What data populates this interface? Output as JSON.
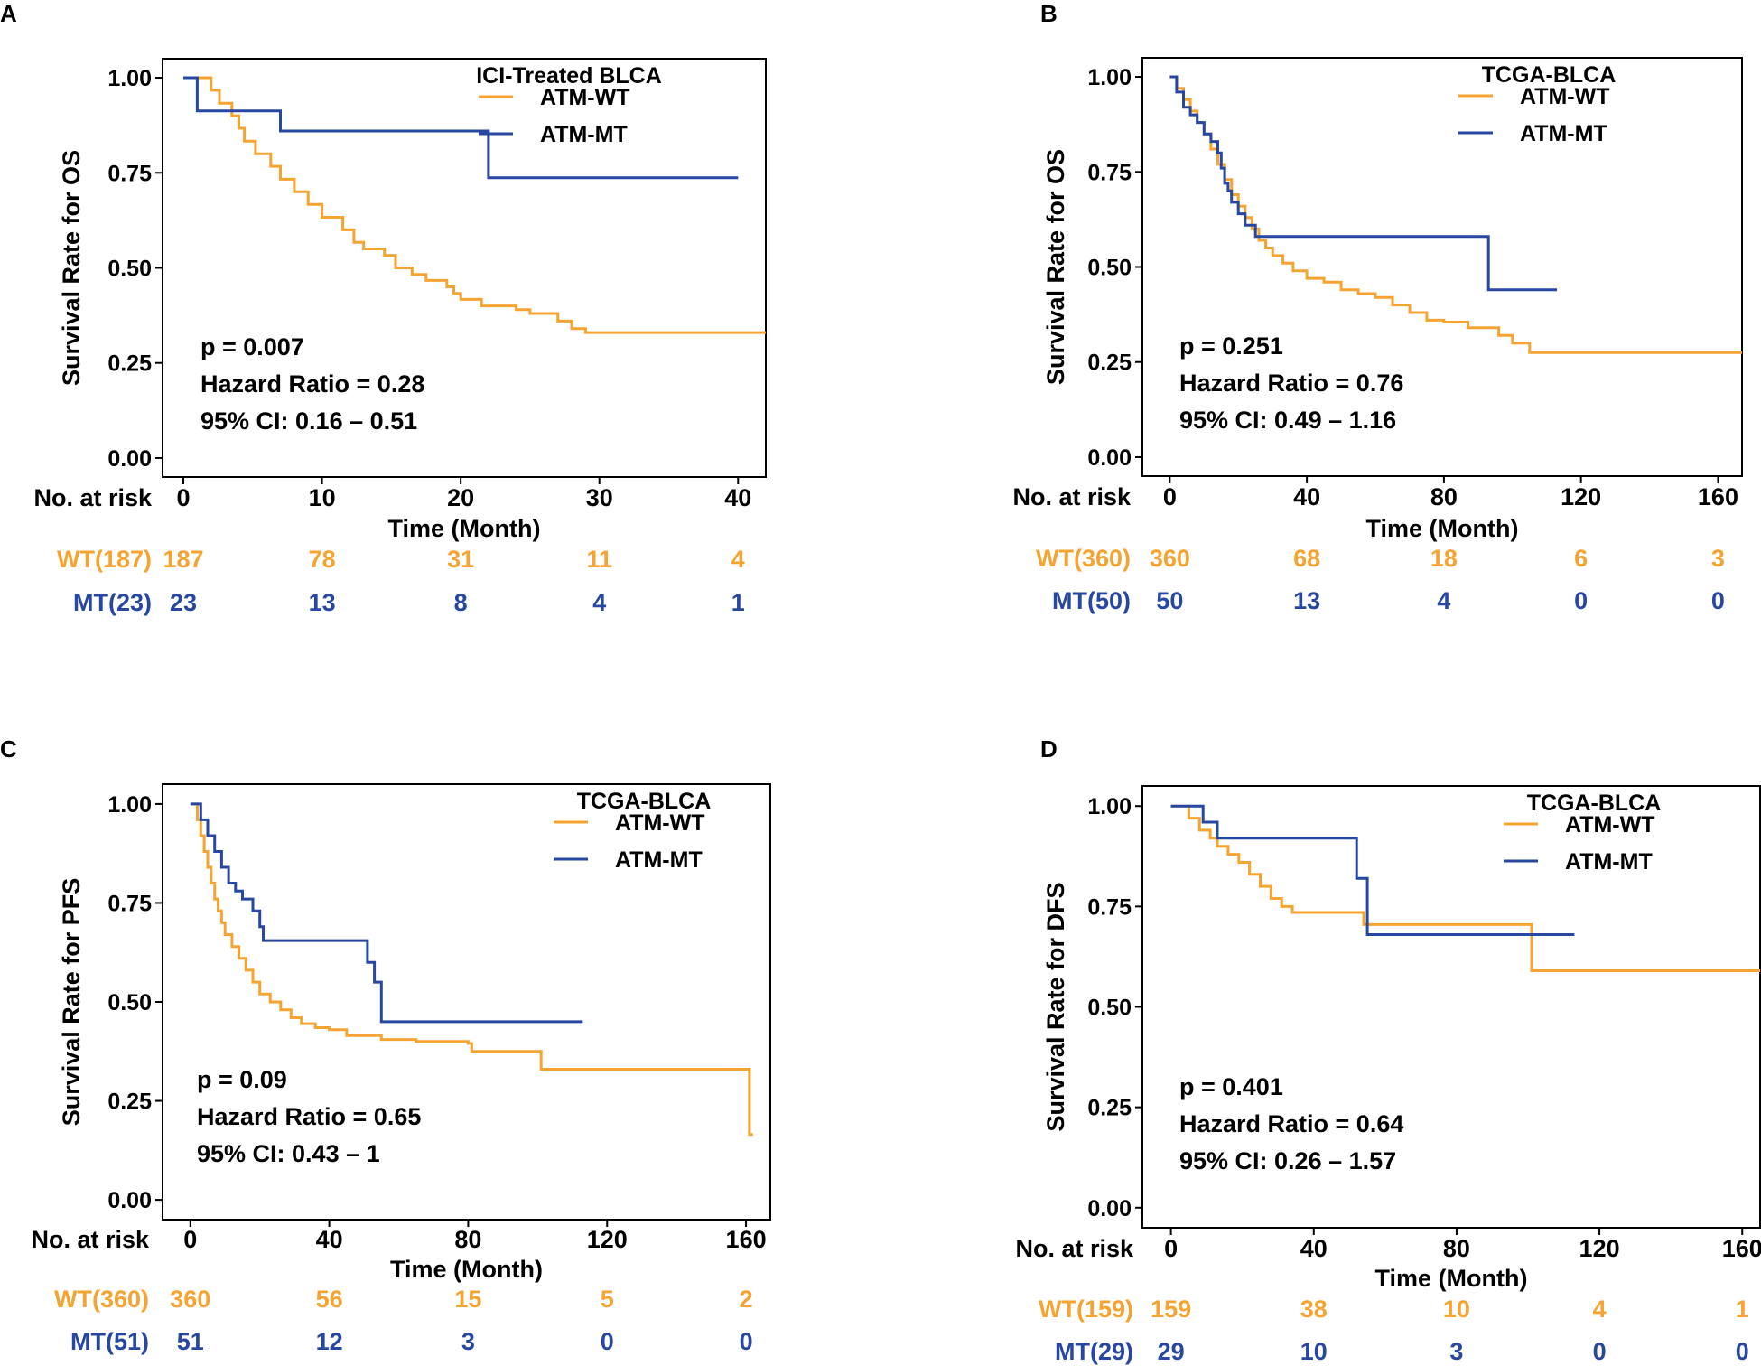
{
  "colors": {
    "wt": "#F5A431",
    "mt": "#2747A0",
    "axis": "#000000"
  },
  "chart_data": [
    {
      "type": "line",
      "panel_label": "A",
      "legend_title": "ICI-Treated BLCA",
      "series": [
        {
          "name": "ATM-WT",
          "key": "wt",
          "steps": [
            [
              0,
              1.0
            ],
            [
              2,
              0.967
            ],
            [
              2.6,
              0.933
            ],
            [
              3.5,
              0.9
            ],
            [
              4,
              0.867
            ],
            [
              4.4,
              0.833
            ],
            [
              5.2,
              0.8
            ],
            [
              6.3,
              0.767
            ],
            [
              7,
              0.733
            ],
            [
              8,
              0.7
            ],
            [
              9,
              0.667
            ],
            [
              10,
              0.633
            ],
            [
              11.5,
              0.6
            ],
            [
              12.3,
              0.567
            ],
            [
              13,
              0.55
            ],
            [
              14.5,
              0.533
            ],
            [
              15.3,
              0.5
            ],
            [
              16.5,
              0.483
            ],
            [
              17.5,
              0.467
            ],
            [
              19,
              0.45
            ],
            [
              19.5,
              0.433
            ],
            [
              20,
              0.417
            ],
            [
              21.5,
              0.4
            ],
            [
              24,
              0.39
            ],
            [
              25,
              0.38
            ],
            [
              27,
              0.36
            ],
            [
              28,
              0.34
            ],
            [
              29,
              0.33
            ],
            [
              40,
              0.33
            ]
          ],
          "end_x": 42.0
        },
        {
          "name": "ATM-MT",
          "key": "mt",
          "steps": [
            [
              0,
              1.0
            ],
            [
              1,
              0.913
            ],
            [
              7,
              0.86
            ],
            [
              22,
              0.737
            ]
          ],
          "end_x": 40
        }
      ],
      "annotations": [
        "p = 0.007",
        "Hazard Ratio = 0.28",
        "95% CI: 0.16 – 0.51"
      ],
      "ylabel": "Survival Rate for OS",
      "xlabel": "Time (Month)",
      "risk_label": "No. at risk",
      "xlim": [
        -1.5,
        42.0
      ],
      "ylim": [
        -0.05,
        1.05
      ],
      "xticks": [
        "0",
        "10",
        "20",
        "30",
        "40"
      ],
      "xtick_values": [
        0,
        10,
        20,
        30,
        40
      ],
      "yticks": [
        "0.00",
        "0.25",
        "0.50",
        "0.75",
        "1.00"
      ],
      "risk_table": [
        {
          "label": "WT(187)",
          "key": "wt",
          "values": [
            "187",
            "78",
            "31",
            "11",
            "4"
          ]
        },
        {
          "label": "MT(23)",
          "key": "mt",
          "values": [
            "23",
            "13",
            "8",
            "4",
            "1"
          ]
        }
      ]
    },
    {
      "type": "line",
      "panel_label": "B",
      "legend_title": "TCGA-BLCA",
      "series": [
        {
          "name": "ATM-WT",
          "key": "wt",
          "steps": [
            [
              0,
              1.0
            ],
            [
              2,
              0.97
            ],
            [
              4,
              0.94
            ],
            [
              6,
              0.91
            ],
            [
              8,
              0.88
            ],
            [
              10,
              0.85
            ],
            [
              12,
              0.81
            ],
            [
              14,
              0.77
            ],
            [
              16,
              0.73
            ],
            [
              18,
              0.69
            ],
            [
              20,
              0.66
            ],
            [
              22,
              0.63
            ],
            [
              24,
              0.6
            ],
            [
              26,
              0.57
            ],
            [
              28,
              0.55
            ],
            [
              30,
              0.53
            ],
            [
              33,
              0.51
            ],
            [
              36,
              0.49
            ],
            [
              40,
              0.47
            ],
            [
              45,
              0.46
            ],
            [
              50,
              0.44
            ],
            [
              55,
              0.43
            ],
            [
              60,
              0.42
            ],
            [
              65,
              0.4
            ],
            [
              70,
              0.38
            ],
            [
              75,
              0.36
            ],
            [
              80,
              0.355
            ],
            [
              86,
              0.355
            ],
            [
              87,
              0.34
            ],
            [
              95,
              0.34
            ],
            [
              96,
              0.32
            ],
            [
              100,
              0.3
            ],
            [
              105,
              0.275
            ],
            [
              165,
              0.275
            ]
          ],
          "end_x": 167
        },
        {
          "name": "ATM-MT",
          "key": "mt",
          "steps": [
            [
              0,
              1.0
            ],
            [
              2,
              0.96
            ],
            [
              4,
              0.92
            ],
            [
              6,
              0.9
            ],
            [
              8,
              0.88
            ],
            [
              10,
              0.85
            ],
            [
              12,
              0.83
            ],
            [
              14,
              0.8
            ],
            [
              15,
              0.76
            ],
            [
              16,
              0.72
            ],
            [
              17,
              0.7
            ],
            [
              18,
              0.67
            ],
            [
              20,
              0.64
            ],
            [
              22,
              0.61
            ],
            [
              25,
              0.58
            ],
            [
              93,
              0.44
            ]
          ],
          "end_x": 113
        }
      ],
      "annotations": [
        "p = 0.251",
        "Hazard Ratio = 0.76",
        "95% CI: 0.49 – 1.16"
      ],
      "ylabel": "Survival Rate for OS",
      "xlabel": "Time (Month)",
      "risk_label": "No. at risk",
      "xlim": [
        -8,
        167
      ],
      "ylim": [
        -0.05,
        1.05
      ],
      "xticks": [
        "0",
        "40",
        "80",
        "120",
        "160"
      ],
      "xtick_values": [
        0,
        40,
        80,
        120,
        160
      ],
      "yticks": [
        "0.00",
        "0.25",
        "0.50",
        "0.75",
        "1.00"
      ],
      "risk_table": [
        {
          "label": "WT(360)",
          "key": "wt",
          "values": [
            "360",
            "68",
            "18",
            "6",
            "3"
          ]
        },
        {
          "label": "MT(50)",
          "key": "mt",
          "values": [
            "50",
            "13",
            "4",
            "0",
            "0"
          ]
        }
      ]
    },
    {
      "type": "line",
      "panel_label": "C",
      "legend_title": "TCGA-BLCA",
      "series": [
        {
          "name": "ATM-WT",
          "key": "wt",
          "steps": [
            [
              0,
              1.0
            ],
            [
              2,
              0.96
            ],
            [
              3,
              0.92
            ],
            [
              4,
              0.88
            ],
            [
              5,
              0.84
            ],
            [
              6,
              0.8
            ],
            [
              7,
              0.76
            ],
            [
              8,
              0.73
            ],
            [
              9,
              0.7
            ],
            [
              10,
              0.67
            ],
            [
              12,
              0.64
            ],
            [
              14,
              0.61
            ],
            [
              16,
              0.58
            ],
            [
              18,
              0.55
            ],
            [
              20,
              0.52
            ],
            [
              23,
              0.5
            ],
            [
              26,
              0.48
            ],
            [
              29,
              0.46
            ],
            [
              32,
              0.445
            ],
            [
              36,
              0.435
            ],
            [
              40,
              0.43
            ],
            [
              45,
              0.415
            ],
            [
              55,
              0.405
            ],
            [
              65,
              0.4
            ],
            [
              80,
              0.395
            ],
            [
              81,
              0.375
            ],
            [
              100,
              0.375
            ],
            [
              101,
              0.33
            ],
            [
              160,
              0.33
            ],
            [
              161,
              0.165
            ]
          ],
          "end_x": 162
        },
        {
          "name": "ATM-MT",
          "key": "mt",
          "steps": [
            [
              0,
              1.0
            ],
            [
              3,
              0.96
            ],
            [
              5,
              0.92
            ],
            [
              7,
              0.88
            ],
            [
              9,
              0.84
            ],
            [
              11,
              0.8
            ],
            [
              13,
              0.78
            ],
            [
              15,
              0.76
            ],
            [
              18,
              0.73
            ],
            [
              20,
              0.69
            ],
            [
              21,
              0.655
            ],
            [
              51,
              0.6
            ],
            [
              53,
              0.55
            ],
            [
              55,
              0.45
            ]
          ],
          "end_x": 113
        }
      ],
      "annotations": [
        "p = 0.09",
        "Hazard Ratio = 0.65",
        "95% CI: 0.43 – 1"
      ],
      "ylabel": "Survival Rate for PFS",
      "xlabel": "Time (Month)",
      "risk_label": "No. at risk",
      "xlim": [
        -8,
        167
      ],
      "ylim": [
        -0.05,
        1.05
      ],
      "xticks": [
        "0",
        "40",
        "80",
        "120",
        "160"
      ],
      "xtick_values": [
        0,
        40,
        80,
        120,
        160
      ],
      "yticks": [
        "0.00",
        "0.25",
        "0.50",
        "0.75",
        "1.00"
      ],
      "risk_table": [
        {
          "label": "WT(360)",
          "key": "wt",
          "values": [
            "360",
            "56",
            "15",
            "5",
            "2"
          ]
        },
        {
          "label": "MT(51)",
          "key": "mt",
          "values": [
            "51",
            "12",
            "3",
            "0",
            "0"
          ]
        }
      ]
    },
    {
      "type": "line",
      "panel_label": "D",
      "legend_title": "TCGA-BLCA",
      "series": [
        {
          "name": "ATM-WT",
          "key": "wt",
          "steps": [
            [
              0,
              1.0
            ],
            [
              5,
              0.97
            ],
            [
              8,
              0.94
            ],
            [
              11,
              0.92
            ],
            [
              13,
              0.9
            ],
            [
              16,
              0.88
            ],
            [
              19,
              0.86
            ],
            [
              22,
              0.83
            ],
            [
              25,
              0.8
            ],
            [
              28,
              0.77
            ],
            [
              31,
              0.75
            ],
            [
              34,
              0.735
            ],
            [
              54,
              0.705
            ],
            [
              101,
              0.59
            ],
            [
              163,
              0.59
            ]
          ],
          "end_x": 165
        },
        {
          "name": "ATM-MT",
          "key": "mt",
          "steps": [
            [
              0,
              1.0
            ],
            [
              9,
              0.96
            ],
            [
              13,
              0.92
            ],
            [
              52,
              0.82
            ],
            [
              55,
              0.68
            ]
          ],
          "end_x": 113
        }
      ],
      "annotations": [
        "p = 0.401",
        "Hazard Ratio = 0.64",
        "95% CI: 0.26 – 1.57"
      ],
      "ylabel": "Survival Rate for DFS",
      "xlabel": "Time (Month)",
      "risk_label": "No. at risk",
      "xlim": [
        -8,
        165
      ],
      "ylim": [
        -0.05,
        1.05
      ],
      "xticks": [
        "0",
        "40",
        "80",
        "120",
        "160"
      ],
      "xtick_values": [
        0,
        40,
        80,
        120,
        160
      ],
      "yticks": [
        "0.00",
        "0.25",
        "0.50",
        "0.75",
        "1.00"
      ],
      "risk_table": [
        {
          "label": "WT(159)",
          "key": "wt",
          "values": [
            "159",
            "38",
            "10",
            "4",
            "1"
          ]
        },
        {
          "label": "MT(29)",
          "key": "mt",
          "values": [
            "29",
            "10",
            "3",
            "0",
            "0"
          ]
        }
      ]
    }
  ]
}
